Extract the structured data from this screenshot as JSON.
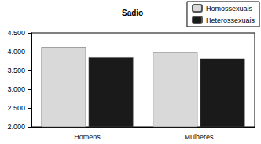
{
  "chart_data": {
    "type": "bar",
    "title": "Sadio",
    "categories": [
      "Homens",
      "Mulheres"
    ],
    "series": [
      {
        "name": "Homossexuais",
        "color": "#d9d9d9",
        "values": [
          4.12,
          3.98
        ]
      },
      {
        "name": "Heterossexuais",
        "color": "#1a1a1a",
        "values": [
          3.85,
          3.82
        ]
      }
    ],
    "ylim": [
      2.0,
      4.5
    ],
    "yticks": [
      {
        "value": 2.0,
        "label": "2.000"
      },
      {
        "value": 2.5,
        "label": "2.500"
      },
      {
        "value": 3.0,
        "label": "3.000"
      },
      {
        "value": 3.5,
        "label": "3.500"
      },
      {
        "value": 4.0,
        "label": "4.000"
      },
      {
        "value": 4.5,
        "label": "4.500"
      }
    ],
    "grid": false,
    "legend": "top-right"
  }
}
